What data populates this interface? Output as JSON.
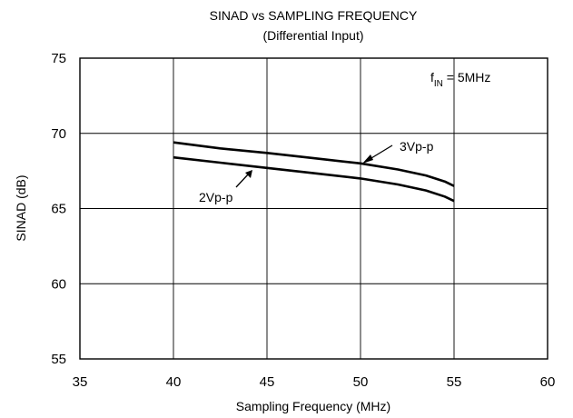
{
  "chart_data": {
    "type": "line",
    "title": "SINAD vs SAMPLING FREQUENCY",
    "subtitle": "(Differential Input)",
    "xlabel": "Sampling Frequency (MHz)",
    "ylabel": "SINAD (dB)",
    "xlim": [
      35,
      60
    ],
    "ylim": [
      55,
      75
    ],
    "xticks": [
      "35",
      "40",
      "45",
      "50",
      "55",
      "60"
    ],
    "yticks": [
      "55",
      "60",
      "65",
      "70",
      "75"
    ],
    "grid": true,
    "series": [
      {
        "name": "3Vp-p",
        "x": [
          40,
          42.5,
          45,
          47.5,
          50,
          52,
          53.5,
          54.5,
          55
        ],
        "y": [
          69.4,
          69.0,
          68.7,
          68.35,
          68.0,
          67.6,
          67.2,
          66.8,
          66.5
        ]
      },
      {
        "name": "2Vp-p",
        "x": [
          40,
          42.5,
          45,
          47.5,
          50,
          52,
          53.5,
          54.5,
          55
        ],
        "y": [
          68.4,
          68.05,
          67.7,
          67.35,
          67.0,
          66.6,
          66.2,
          65.8,
          65.5
        ]
      }
    ],
    "annotation": {
      "main": "f",
      "sub": "IN",
      "rest": " = 5MHz"
    }
  }
}
